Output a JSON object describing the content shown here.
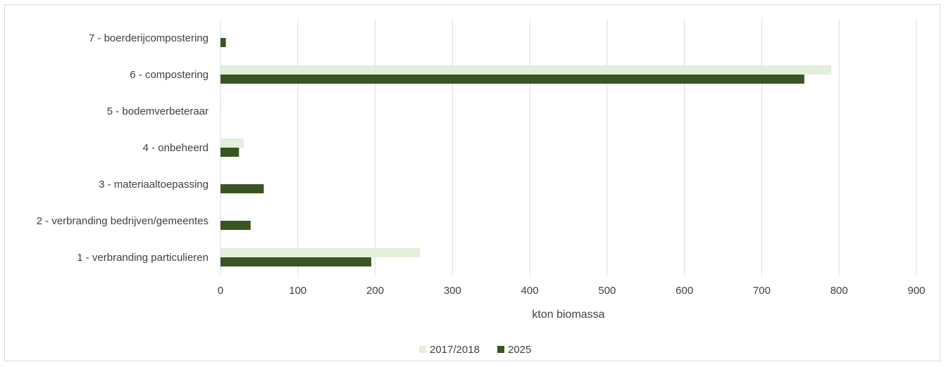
{
  "chart_data": {
    "type": "bar",
    "orientation": "horizontal",
    "categories": [
      "7 - boerderijcompostering",
      "6 - compostering",
      "5 - bodemverbeteraar",
      "4 - onbeheerd",
      "3 - materiaaltoepassing",
      "2 - verbranding bedrijven/gemeentes",
      "1 - verbranding particulieren"
    ],
    "series": [
      {
        "name": "2017/2018",
        "color": "#e2efda",
        "values": [
          0,
          790,
          1,
          30,
          0,
          0,
          258
        ]
      },
      {
        "name": "2025",
        "color": "#375623",
        "values": [
          7,
          755,
          0,
          24,
          56,
          39,
          195
        ]
      }
    ],
    "xlabel": "kton biomassa",
    "xlim": [
      0,
      900
    ],
    "xticks": [
      0,
      100,
      200,
      300,
      400,
      500,
      600,
      700,
      800,
      900
    ],
    "grid": true,
    "legend_position": "bottom"
  }
}
